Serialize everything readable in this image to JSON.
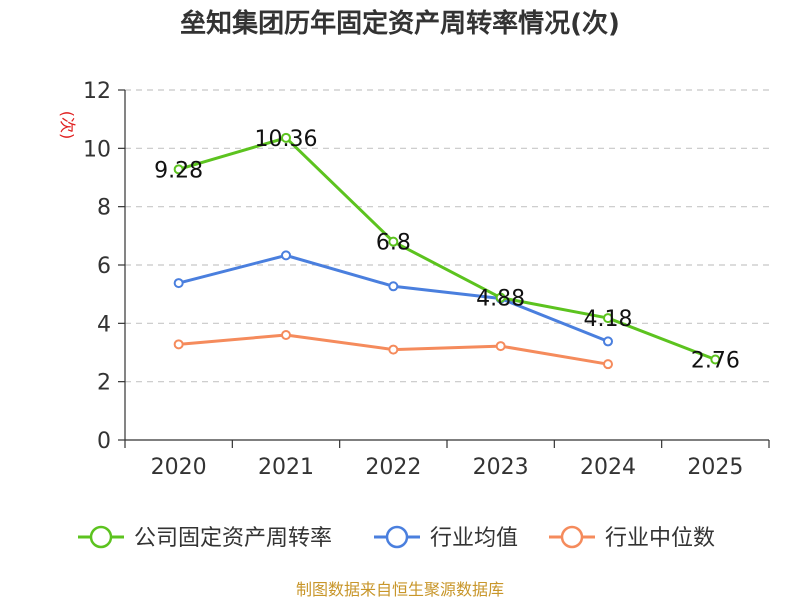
{
  "chart_data": {
    "type": "line",
    "title": "垒知集团历年固定资产周转率情况(次)",
    "ylabel": "(次)",
    "xlabel": "",
    "categories": [
      "2020",
      "2021",
      "2022",
      "2023",
      "2024",
      "2025"
    ],
    "ylim": [
      0,
      12
    ],
    "yticks": [
      0,
      2,
      4,
      6,
      8,
      10,
      12
    ],
    "grid": true,
    "legend_position": "bottom",
    "series": [
      {
        "name": "公司固定资产周转率",
        "color": "#5cc31f",
        "values": [
          9.28,
          10.36,
          6.8,
          4.88,
          4.18,
          2.76
        ],
        "labels": [
          "9.28",
          "10.36",
          "6.8",
          "4.88",
          "4.18",
          "2.76"
        ]
      },
      {
        "name": "行业均值",
        "color": "#4a7fde",
        "values": [
          5.38,
          6.33,
          5.27,
          4.85,
          3.38,
          null
        ]
      },
      {
        "name": "行业中位数",
        "color": "#f58b5c",
        "values": [
          3.28,
          3.6,
          3.1,
          3.22,
          2.6,
          null
        ]
      }
    ],
    "source": "制图数据来自恒生聚源数据库"
  }
}
